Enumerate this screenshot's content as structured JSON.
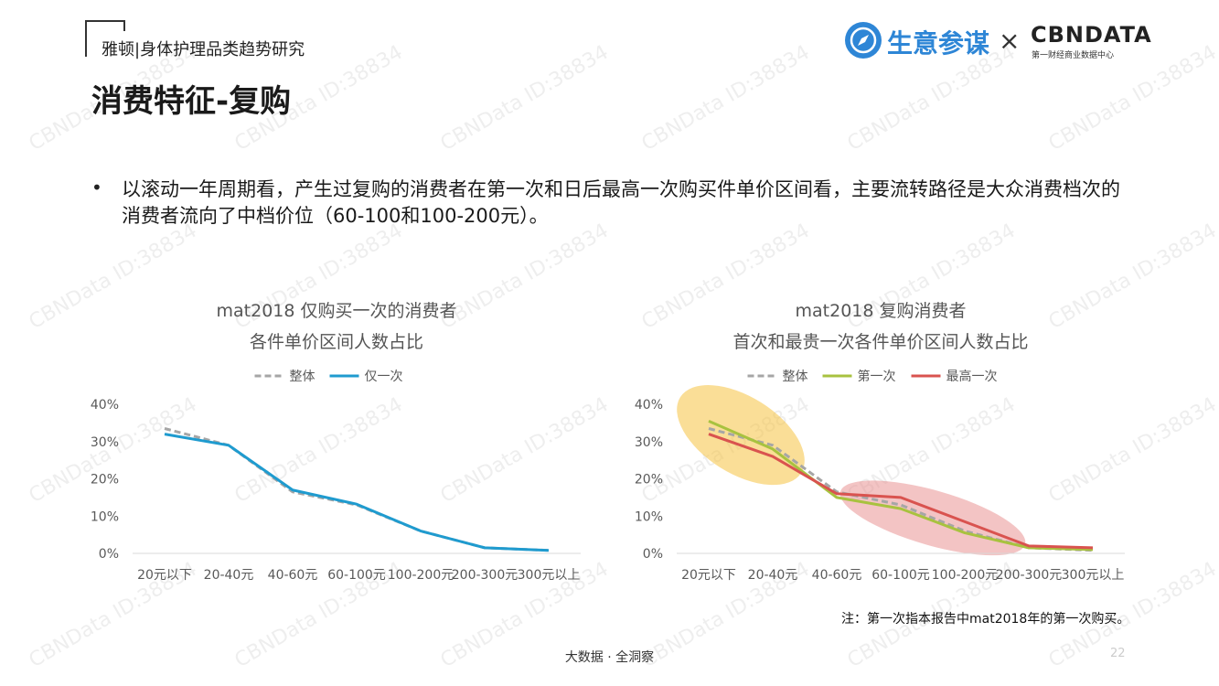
{
  "header": {
    "brand_tag": "雅顿|身体护理品类趋势研究",
    "page_title": "消费特征-复购"
  },
  "logo": {
    "cn_name": "生意参谋",
    "cross": "×",
    "cbn_name": "CBNDATA",
    "cbn_sub": "第一财经商业数据中心",
    "brand_color": "#2e86d6"
  },
  "bullet": {
    "text": "以滚动一年周期看，产生过复购的消费者在第一次和日后最高一次购买件单价区间看，主要流转路径是大众消费档次的消费者流向了中档价位（60-100和100-200元）。"
  },
  "chart_data": [
    {
      "type": "line",
      "title": "mat2018 仅购买一次的消费者",
      "subtitle": "各件单价区间人数占比",
      "categories": [
        "20元以下",
        "20-40元",
        "40-60元",
        "60-100元",
        "100-200元",
        "200-300元",
        "300元以上"
      ],
      "y_ticks": [
        "0%",
        "10%",
        "20%",
        "30%",
        "40%"
      ],
      "ylim": [
        0,
        40
      ],
      "grid": false,
      "legend_position": "top-center",
      "series": [
        {
          "name": "整体",
          "values": [
            33.5,
            29,
            16.5,
            13,
            6,
            1.5,
            0.8
          ],
          "color": "#a6a6a6",
          "dashed": true
        },
        {
          "name": "仅一次",
          "values": [
            32,
            29,
            17,
            13.2,
            6,
            1.5,
            0.8
          ],
          "color": "#1f9bcf",
          "dashed": false
        }
      ]
    },
    {
      "type": "line",
      "title": "mat2018 复购消费者",
      "subtitle": "首次和最贵一次各件单价区间人数占比",
      "categories": [
        "20元以下",
        "20-40元",
        "40-60元",
        "60-100元",
        "100-200元",
        "200-300元",
        "300元以上"
      ],
      "y_ticks": [
        "0%",
        "10%",
        "20%",
        "30%",
        "40%"
      ],
      "ylim": [
        0,
        40
      ],
      "grid": false,
      "legend_position": "top-center",
      "series": [
        {
          "name": "整体",
          "values": [
            33.5,
            29,
            16.5,
            13,
            6,
            1.5,
            0.8
          ],
          "color": "#a6a6a6",
          "dashed": true
        },
        {
          "name": "第一次",
          "values": [
            35.5,
            28,
            15,
            12,
            5.5,
            1.5,
            1
          ],
          "color": "#a8c23f",
          "dashed": false
        },
        {
          "name": "最高一次",
          "values": [
            32,
            26,
            16,
            15,
            8.5,
            2,
            1.5
          ],
          "color": "#d9534f",
          "dashed": false
        }
      ],
      "highlights": [
        {
          "color": "#f5c242"
        },
        {
          "color": "#e88a8a"
        }
      ]
    }
  ],
  "note": "注：第一次指本报告中mat2018年的第一次购买。",
  "footer": "大数据 · 全洞察",
  "page_number": "22",
  "watermark": "CBNData ID:38834"
}
